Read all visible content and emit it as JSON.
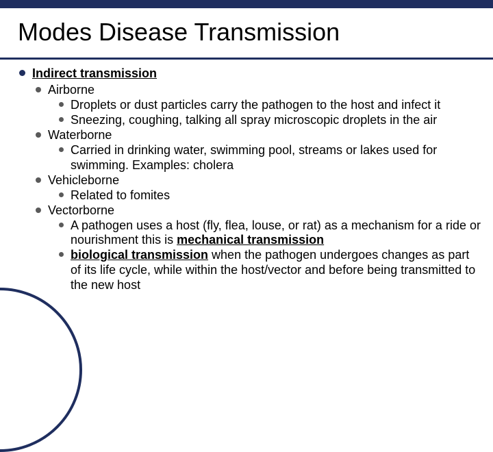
{
  "title": "Modes Disease Transmission",
  "l1": "Indirect transmission",
  "airborne": "Airborne",
  "airborne_1": "Droplets or dust particles carry the pathogen to the host and infect it",
  "airborne_2": "Sneezing, coughing, talking all spray microscopic droplets in the air",
  "waterborne": "Waterborne",
  "waterborne_1": "Carried in drinking water, swimming pool, streams or lakes used for swimming.   Examples:  cholera",
  "vehicleborne": "Vehicleborne",
  "vehicleborne_1": "Related to fomites",
  "vectorborne": "Vectorborne",
  "vectorborne_1_a": "A pathogen uses a host (fly, flea, louse, or rat) as a mechanism for a ride or nourishment this is ",
  "vectorborne_1_b": "mechanical transmission",
  "vectorborne_2_a": "biological transmission",
  "vectorborne_2_b": " when the pathogen undergoes changes as part of its life cycle, while within the host/vector and before being transmitted to the new host",
  "colors": {
    "accent": "#1f2e5f",
    "bullet_gray": "#5a5a5a",
    "text": "#000000",
    "background": "#ffffff"
  },
  "fonts": {
    "title_size": 36,
    "body_size": 18
  }
}
